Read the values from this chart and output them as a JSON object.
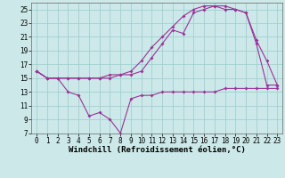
{
  "xlabel": "Windchill (Refroidissement éolien,°C)",
  "bg_color": "#cce8e8",
  "line_color": "#993399",
  "grid_color": "#99cccc",
  "xlim_min": -0.5,
  "xlim_max": 23.5,
  "ylim_min": 7,
  "ylim_max": 26,
  "xticks": [
    0,
    1,
    2,
    3,
    4,
    5,
    6,
    7,
    8,
    9,
    10,
    11,
    12,
    13,
    14,
    15,
    16,
    17,
    18,
    19,
    20,
    21,
    22,
    23
  ],
  "yticks": [
    7,
    9,
    11,
    13,
    15,
    17,
    19,
    21,
    23,
    25
  ],
  "line1_x": [
    0,
    1,
    2,
    3,
    4,
    5,
    6,
    7,
    8,
    9,
    10,
    11,
    12,
    13,
    14,
    15,
    16,
    17,
    18,
    19,
    20,
    21,
    22,
    23
  ],
  "line1_y": [
    16.0,
    15.0,
    15.0,
    13.0,
    12.5,
    9.5,
    10.0,
    9.0,
    7.0,
    12.0,
    12.5,
    12.5,
    13.0,
    13.0,
    13.0,
    13.0,
    13.0,
    13.0,
    13.5,
    13.5,
    13.5,
    13.5,
    13.5,
    13.5
  ],
  "line2_x": [
    0,
    1,
    2,
    3,
    4,
    5,
    6,
    7,
    8,
    9,
    10,
    11,
    12,
    13,
    14,
    15,
    16,
    17,
    18,
    19,
    20,
    21,
    22,
    23
  ],
  "line2_y": [
    16.0,
    15.0,
    15.0,
    15.0,
    15.0,
    15.0,
    15.0,
    15.0,
    15.5,
    15.5,
    16.0,
    18.0,
    20.0,
    22.0,
    21.5,
    24.5,
    25.0,
    25.5,
    25.5,
    25.0,
    24.5,
    20.5,
    17.5,
    14.0
  ],
  "line3_x": [
    0,
    1,
    2,
    3,
    4,
    5,
    6,
    7,
    8,
    9,
    10,
    11,
    12,
    13,
    14,
    15,
    16,
    17,
    18,
    19,
    20,
    21,
    22,
    23
  ],
  "line3_y": [
    16.0,
    15.0,
    15.0,
    15.0,
    15.0,
    15.0,
    15.0,
    15.5,
    15.5,
    16.0,
    17.5,
    19.5,
    21.0,
    22.5,
    24.0,
    25.0,
    25.5,
    25.5,
    25.0,
    25.0,
    24.5,
    20.0,
    14.0,
    14.0
  ],
  "tick_fontsize": 5.5,
  "xlabel_fontsize": 6.5,
  "marker_size": 2.0,
  "line_width": 0.8
}
